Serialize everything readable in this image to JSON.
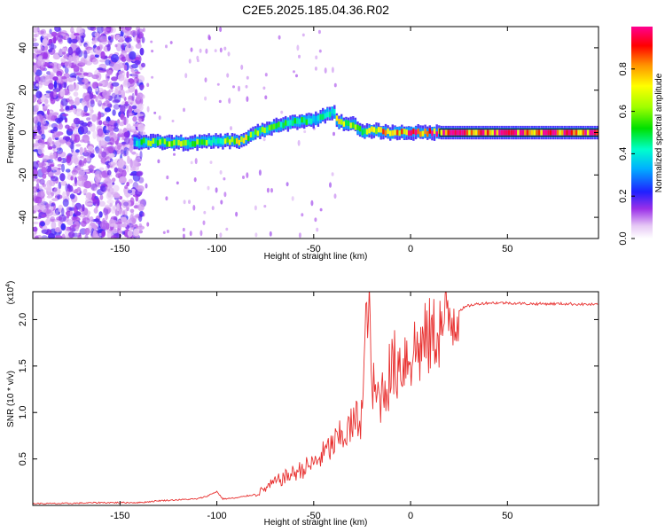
{
  "title": "C2E5.2025.185.04.36.R02",
  "chart_data": [
    {
      "type": "heatmap",
      "xlabel": "Height of straight line (km)",
      "ylabel": "Frequency (Hz)",
      "xlim": [
        -195,
        97
      ],
      "ylim": [
        -50,
        50
      ],
      "xticks": [
        -150,
        -100,
        -50,
        0,
        50
      ],
      "yticks": [
        -40,
        -20,
        0,
        20,
        40
      ],
      "colorbar": {
        "label": "Normalized spectral amplitude",
        "range": [
          0,
          1
        ],
        "ticks": [
          "0.0",
          "0.2",
          "0.4",
          "0.6",
          "0.8"
        ],
        "tick_values": [
          0,
          0.2,
          0.4,
          0.6,
          0.8
        ]
      },
      "ridge": {
        "name": "dominant frequency track",
        "x": [
          -143,
          -130,
          -115,
          -100,
          -88,
          -80,
          -70,
          -60,
          -50,
          -40,
          -38,
          -30,
          -25,
          -20,
          -10,
          0,
          15,
          97
        ],
        "y": [
          -4.5,
          -4.5,
          -5,
          -4,
          -4,
          0,
          3,
          5,
          6,
          10,
          5,
          4,
          0,
          1,
          0,
          0,
          0,
          0
        ],
        "amplitude": [
          0.4,
          0.7,
          0.6,
          0.55,
          0.7,
          0.6,
          0.55,
          0.5,
          0.45,
          0.5,
          0.7,
          0.6,
          0.5,
          0.8,
          0.9,
          0.9,
          1.0,
          1.0
        ]
      },
      "noise_region": {
        "x_range": [
          -195,
          -138
        ],
        "y_range": [
          -50,
          50
        ],
        "amplitude_range": [
          0.0,
          0.3
        ]
      }
    },
    {
      "type": "line",
      "xlabel": "Height of straight line (km)",
      "ylabel": "SNR (10 * v/v)",
      "scale_label": "(x10^4)",
      "xlim": [
        -195,
        97
      ],
      "ylim": [
        0,
        2.3
      ],
      "xticks": [
        -150,
        -100,
        -50,
        0,
        50
      ],
      "yticks": [
        0.5,
        1.0,
        1.5,
        2.0
      ],
      "ytick_labels": [
        "0.5",
        "1.0",
        "1.5",
        "2.0"
      ],
      "series": [
        {
          "color": "#e8302f",
          "x": [
            -195,
            -180,
            -160,
            -140,
            -130,
            -120,
            -110,
            -105,
            -100,
            -97,
            -90,
            -80,
            -75,
            -70,
            -65,
            -60,
            -55,
            -50,
            -45,
            -40,
            -35,
            -30,
            -25,
            -22,
            -20,
            -18,
            -15,
            -12,
            -10,
            -8,
            -5,
            -3,
            0,
            5,
            10,
            15,
            20,
            25,
            30,
            35,
            40,
            50,
            60,
            70,
            80,
            97
          ],
          "y": [
            0.02,
            0.02,
            0.03,
            0.03,
            0.05,
            0.06,
            0.07,
            0.1,
            0.15,
            0.07,
            0.08,
            0.12,
            0.18,
            0.25,
            0.3,
            0.35,
            0.4,
            0.45,
            0.55,
            0.65,
            0.75,
            0.85,
            1.0,
            2.3,
            1.3,
            1.15,
            1.2,
            1.35,
            1.45,
            1.5,
            1.55,
            1.6,
            1.65,
            1.7,
            1.8,
            1.9,
            2.0,
            2.1,
            2.15,
            2.17,
            2.18,
            2.18,
            2.17,
            2.17,
            2.17,
            2.16
          ]
        }
      ]
    }
  ]
}
